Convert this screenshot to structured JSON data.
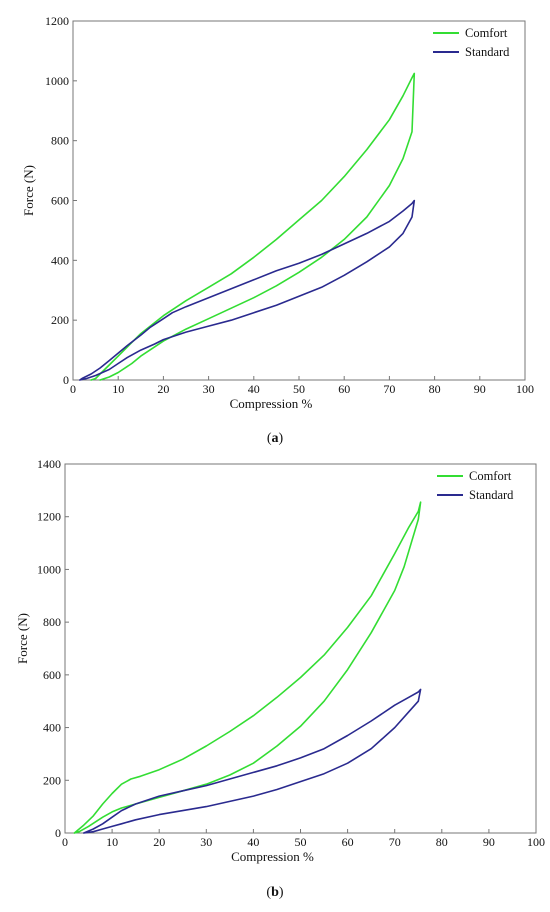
{
  "chart_data": [
    {
      "type": "line",
      "panel_label": "(a)",
      "panel_letter": "a",
      "xlabel": "Compression %",
      "ylabel": "Force (N)",
      "xlim": [
        0,
        100
      ],
      "ylim": [
        0,
        1200
      ],
      "xticks": [
        0,
        10,
        20,
        30,
        40,
        50,
        60,
        70,
        80,
        90,
        100
      ],
      "yticks": [
        0,
        200,
        400,
        600,
        800,
        1000,
        1200
      ],
      "grid": false,
      "legend_position": "top-right",
      "series": [
        {
          "name": "Comfort",
          "color": "#33dd33",
          "x": [
            6,
            8,
            10,
            13,
            15,
            18,
            20,
            25,
            30,
            35,
            40,
            45,
            50,
            55,
            60,
            65,
            70,
            73,
            75,
            75.5,
            75,
            73,
            70,
            65,
            60,
            55,
            50,
            45,
            40,
            35,
            30,
            25,
            20,
            15,
            12,
            10,
            8,
            6,
            5,
            4
          ],
          "y": [
            0,
            10,
            25,
            55,
            80,
            110,
            130,
            170,
            205,
            240,
            275,
            315,
            360,
            410,
            470,
            545,
            650,
            740,
            830,
            1025,
            1010,
            950,
            870,
            770,
            680,
            600,
            535,
            470,
            410,
            355,
            310,
            265,
            215,
            155,
            110,
            80,
            50,
            20,
            5,
            0
          ]
        },
        {
          "name": "Standard",
          "color": "#2a2a8f",
          "x": [
            1.5,
            3,
            5,
            8,
            10,
            12,
            15,
            18,
            20,
            25,
            30,
            35,
            40,
            45,
            50,
            55,
            60,
            65,
            70,
            73,
            75,
            75.5,
            75,
            73,
            70,
            65,
            60,
            55,
            50,
            45,
            40,
            35,
            30,
            25,
            22,
            20,
            17,
            15,
            12,
            10,
            8,
            6,
            4,
            2,
            1.5
          ],
          "y": [
            0,
            5,
            15,
            35,
            55,
            75,
            100,
            120,
            135,
            160,
            180,
            200,
            225,
            250,
            280,
            310,
            350,
            395,
            445,
            490,
            545,
            600,
            590,
            565,
            530,
            490,
            455,
            420,
            390,
            365,
            335,
            305,
            275,
            245,
            225,
            205,
            175,
            150,
            115,
            90,
            65,
            40,
            20,
            5,
            0
          ]
        }
      ]
    },
    {
      "type": "line",
      "panel_label": "(b)",
      "panel_letter": "b",
      "xlabel": "Compression %",
      "ylabel": "Force (N)",
      "xlim": [
        0,
        100
      ],
      "ylim": [
        0,
        1400
      ],
      "xticks": [
        0,
        10,
        20,
        30,
        40,
        50,
        60,
        70,
        80,
        90,
        100
      ],
      "yticks": [
        0,
        200,
        400,
        600,
        800,
        1000,
        1200,
        1400
      ],
      "grid": false,
      "legend_position": "top-right",
      "series": [
        {
          "name": "Comfort",
          "color": "#33dd33",
          "x": [
            2,
            4,
            6,
            8,
            10,
            12,
            14,
            16,
            20,
            25,
            30,
            35,
            40,
            45,
            50,
            55,
            60,
            65,
            70,
            73,
            75,
            75.5,
            75,
            72,
            70,
            65,
            60,
            55,
            50,
            45,
            40,
            35,
            30,
            25,
            20,
            15,
            12,
            10,
            8,
            5,
            3,
            2
          ],
          "y": [
            0,
            30,
            65,
            110,
            150,
            185,
            205,
            215,
            240,
            280,
            330,
            385,
            445,
            515,
            590,
            675,
            780,
            900,
            1060,
            1160,
            1220,
            1255,
            1190,
            1010,
            920,
            760,
            620,
            500,
            405,
            330,
            265,
            220,
            185,
            160,
            135,
            110,
            95,
            80,
            60,
            25,
            5,
            0
          ]
        },
        {
          "name": "Standard",
          "color": "#2a2a8f",
          "x": [
            4,
            6,
            8,
            10,
            12,
            15,
            20,
            25,
            30,
            35,
            40,
            45,
            50,
            55,
            60,
            65,
            70,
            73,
            75,
            75.5,
            75,
            73,
            70,
            65,
            60,
            55,
            50,
            45,
            40,
            35,
            30,
            25,
            20,
            15,
            12,
            10,
            8,
            6,
            4
          ],
          "y": [
            0,
            5,
            15,
            25,
            35,
            50,
            70,
            85,
            100,
            120,
            140,
            165,
            195,
            225,
            265,
            320,
            400,
            460,
            500,
            545,
            535,
            515,
            485,
            425,
            370,
            320,
            285,
            255,
            230,
            205,
            180,
            160,
            140,
            110,
            85,
            60,
            35,
            15,
            0
          ]
        }
      ]
    }
  ]
}
